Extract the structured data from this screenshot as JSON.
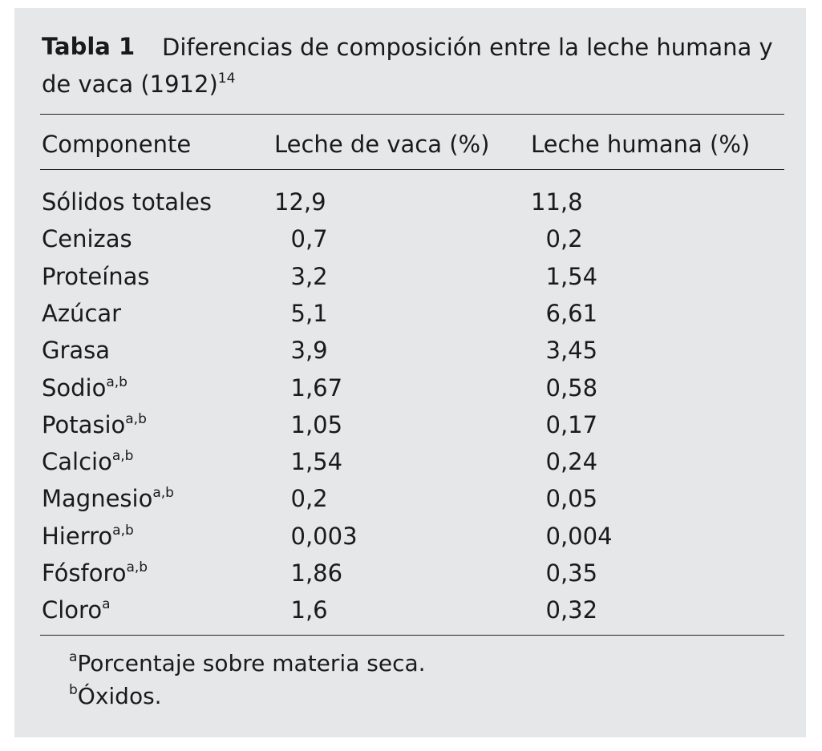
{
  "title": {
    "label": "Tabla 1",
    "text": "Diferencias de composición entre la leche humana y de vaca (1912)",
    "ref": "14"
  },
  "table": {
    "header": [
      "Componente",
      "Leche de vaca (%)",
      "Leche humana (%)"
    ],
    "rows": [
      {
        "name": "Sólidos totales",
        "cow": "12,9",
        "human": "11,8"
      },
      {
        "name": "Cenizas",
        "cow": "0,7",
        "human": "0,2"
      },
      {
        "name": "Proteínas",
        "cow": "3,2",
        "human": "1,54"
      },
      {
        "name": "Azúcar",
        "cow": "5,1",
        "human": "6,61"
      },
      {
        "name": "Grasa",
        "cow": "3,9",
        "human": "3,45"
      },
      {
        "name": "Sodio",
        "sup": "a,b",
        "cow": "1,67",
        "human": "0,58"
      },
      {
        "name": "Potasio",
        "sup": "a,b",
        "cow": "1,05",
        "human": "0,17"
      },
      {
        "name": "Calcio",
        "sup": "a,b",
        "cow": "1,54",
        "human": "0,24"
      },
      {
        "name": "Magnesio",
        "sup": "a,b",
        "cow": "0,2",
        "human": "0,05"
      },
      {
        "name": "Hierro",
        "sup": "a,b",
        "cow": "0,003",
        "human": "0,004"
      },
      {
        "name": "Fósforo",
        "sup": "a,b",
        "cow": "1,86",
        "human": "0,35"
      },
      {
        "name": "Cloro",
        "sup": "a",
        "cow": "1,6",
        "human": "0,32"
      }
    ]
  },
  "footnotes": [
    {
      "mark": "a",
      "text": "Porcentaje sobre materia seca."
    },
    {
      "mark": "b",
      "text": "Óxidos."
    }
  ]
}
